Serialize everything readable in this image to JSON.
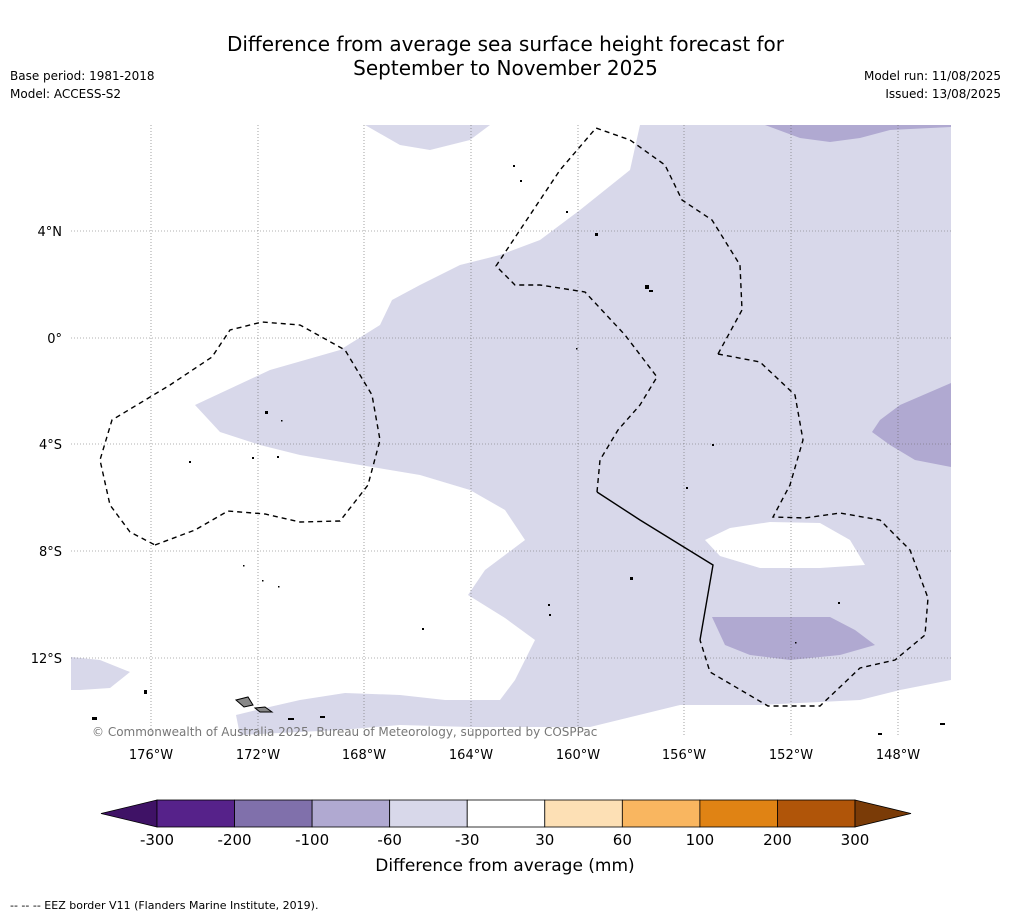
{
  "header": {
    "title_line1": "Difference from average sea surface height forecast for",
    "title_line2": "September to November 2025",
    "base_period": "Base period: 1981-2018",
    "model": "Model: ACCESS-S2",
    "model_run": "Model run: 11/08/2025",
    "issued": "Issued: 13/08/2025"
  },
  "map": {
    "lat_labels": [
      "4°N",
      "0°",
      "4°S",
      "8°S",
      "12°S"
    ],
    "lon_labels": [
      "176°W",
      "172°W",
      "168°W",
      "164°W",
      "160°W",
      "156°W",
      "152°W",
      "148°W"
    ],
    "copyright": "© Commonwealth of Australia 2025, Bureau of Meteorology, supported by COSPPac"
  },
  "colorbar": {
    "ticks": [
      "-300",
      "-200",
      "-100",
      "-60",
      "-30",
      "30",
      "60",
      "100",
      "200",
      "300"
    ],
    "colors": [
      "#3f1266",
      "#56228a",
      "#8070ab",
      "#b0a9d1",
      "#d8d8ea",
      "#ffffff",
      "#fde0b5",
      "#f9b660",
      "#e08314",
      "#b05509",
      "#7a3b07"
    ],
    "label": "Difference from average (mm)"
  },
  "footnote": "--  --  -- EEZ border V11 (Flanders Marine Institute, 2019).",
  "legend_colors": {
    "light_purple": "#d8d8ea",
    "mid_purple": "#b0a9d1",
    "island_grey": "#888888"
  }
}
